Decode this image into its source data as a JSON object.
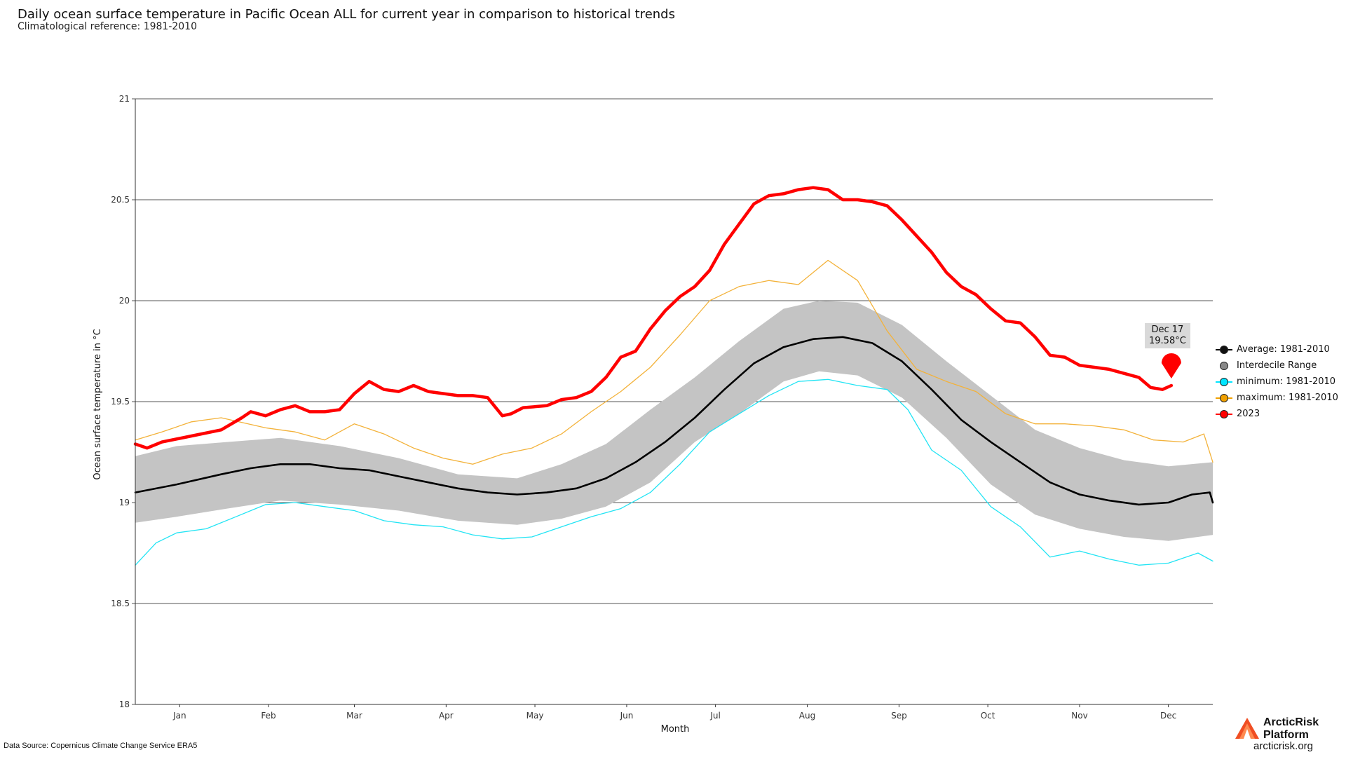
{
  "header": {
    "title": "Daily ocean surface temperature in Pacific Ocean ALL for current year in comparison to historical trends",
    "subtitle": "Climatological reference: 1981-2010"
  },
  "footer": {
    "source": "Data Source: Copernicus Climate Change Service ERA5",
    "brand_line1": "ArcticRisk",
    "brand_line2": "Platform",
    "brand_url": "arcticrisk.org"
  },
  "tooltip": {
    "date": "Dec 17",
    "value": "19.58°C"
  },
  "legend": [
    {
      "label": "Average: 1981-2010",
      "color": "#000000",
      "dot": "#222222"
    },
    {
      "label": "Interdecile Range",
      "color": "#888888",
      "dot": "#888888"
    },
    {
      "label": "minimum: 1981-2010",
      "color": "#00e5ff",
      "dot": "#00e5ff"
    },
    {
      "label": "maximum: 1981-2010",
      "color": "#f0a000",
      "dot": "#f0a000"
    },
    {
      "label": "2023",
      "color": "#ff0000",
      "dot": "#ff0000"
    }
  ],
  "colors": {
    "band": "#c4c4c4",
    "average": "#000000",
    "minimum": "#22e4f4",
    "maximum": "#f3b23a",
    "current": "#ff0000"
  },
  "chart_data": {
    "type": "line",
    "xlabel": "Month",
    "ylabel": "Ocean surface temperature in °C",
    "ylim": [
      18,
      21
    ],
    "xlim": [
      1,
      365
    ],
    "yticks": [
      18,
      18.5,
      19,
      19.5,
      20,
      20.5,
      21
    ],
    "xticks": [
      {
        "label": "Jan",
        "day": 16
      },
      {
        "label": "Feb",
        "day": 46
      },
      {
        "label": "Mar",
        "day": 75
      },
      {
        "label": "Apr",
        "day": 106
      },
      {
        "label": "May",
        "day": 136
      },
      {
        "label": "Jun",
        "day": 167
      },
      {
        "label": "Jul",
        "day": 197
      },
      {
        "label": "Aug",
        "day": 228
      },
      {
        "label": "Sep",
        "day": 259
      },
      {
        "label": "Oct",
        "day": 289
      },
      {
        "label": "Nov",
        "day": 320
      },
      {
        "label": "Dec",
        "day": 350
      }
    ],
    "grid": "horizontal",
    "legend_position": "right",
    "series": [
      {
        "name": "Interdecile Range",
        "x": [
          1,
          15,
          32,
          50,
          70,
          90,
          110,
          130,
          145,
          160,
          175,
          190,
          205,
          220,
          232,
          245,
          260,
          275,
          290,
          305,
          320,
          335,
          350,
          365
        ],
        "upper": [
          19.23,
          19.28,
          19.3,
          19.32,
          19.28,
          19.22,
          19.14,
          19.12,
          19.19,
          19.29,
          19.46,
          19.62,
          19.8,
          19.96,
          20.0,
          19.99,
          19.88,
          19.7,
          19.53,
          19.36,
          19.27,
          19.21,
          19.18,
          19.2
        ],
        "lower": [
          18.9,
          18.93,
          18.97,
          19.01,
          18.99,
          18.96,
          18.91,
          18.89,
          18.92,
          18.98,
          19.1,
          19.3,
          19.44,
          19.6,
          19.65,
          19.63,
          19.52,
          19.32,
          19.09,
          18.94,
          18.87,
          18.83,
          18.81,
          18.84
        ]
      },
      {
        "name": "Average: 1981-2010",
        "x": [
          1,
          15,
          30,
          40,
          50,
          60,
          70,
          80,
          90,
          100,
          110,
          120,
          130,
          140,
          150,
          160,
          170,
          180,
          190,
          200,
          210,
          220,
          230,
          240,
          250,
          260,
          270,
          280,
          290,
          300,
          310,
          320,
          330,
          340,
          350,
          358,
          364,
          365
        ],
        "values": [
          19.05,
          19.09,
          19.14,
          19.17,
          19.19,
          19.19,
          19.17,
          19.16,
          19.13,
          19.1,
          19.07,
          19.05,
          19.04,
          19.05,
          19.07,
          19.12,
          19.2,
          19.3,
          19.42,
          19.56,
          19.69,
          19.77,
          19.81,
          19.82,
          19.79,
          19.7,
          19.56,
          19.41,
          19.3,
          19.2,
          19.1,
          19.04,
          19.01,
          18.99,
          19.0,
          19.04,
          19.05,
          19.0
        ]
      },
      {
        "name": "minimum: 1981-2010",
        "x": [
          1,
          8,
          15,
          25,
          35,
          45,
          55,
          65,
          75,
          85,
          95,
          105,
          115,
          125,
          135,
          145,
          155,
          165,
          175,
          185,
          195,
          205,
          215,
          225,
          235,
          245,
          255,
          262,
          270,
          280,
          290,
          300,
          310,
          320,
          330,
          340,
          350,
          360,
          365
        ],
        "values": [
          18.69,
          18.8,
          18.85,
          18.87,
          18.93,
          18.99,
          19.0,
          18.98,
          18.96,
          18.91,
          18.89,
          18.88,
          18.84,
          18.82,
          18.83,
          18.88,
          18.93,
          18.97,
          19.05,
          19.19,
          19.35,
          19.44,
          19.53,
          19.6,
          19.61,
          19.58,
          19.56,
          19.46,
          19.26,
          19.16,
          18.98,
          18.88,
          18.73,
          18.76,
          18.72,
          18.69,
          18.7,
          18.75,
          18.71
        ]
      },
      {
        "name": "maximum: 1981-2010",
        "x": [
          1,
          10,
          20,
          30,
          45,
          55,
          65,
          75,
          85,
          95,
          105,
          115,
          125,
          135,
          145,
          155,
          165,
          175,
          185,
          195,
          205,
          215,
          225,
          235,
          245,
          255,
          265,
          275,
          285,
          295,
          305,
          315,
          325,
          335,
          345,
          355,
          362,
          365
        ],
        "values": [
          19.31,
          19.35,
          19.4,
          19.42,
          19.37,
          19.35,
          19.31,
          19.39,
          19.34,
          19.27,
          19.22,
          19.19,
          19.24,
          19.27,
          19.34,
          19.45,
          19.55,
          19.67,
          19.83,
          20.0,
          20.07,
          20.1,
          20.08,
          20.2,
          20.1,
          19.85,
          19.66,
          19.6,
          19.55,
          19.44,
          19.39,
          19.39,
          19.38,
          19.36,
          19.31,
          19.3,
          19.34,
          19.2
        ]
      },
      {
        "name": "2023",
        "x": [
          1,
          5,
          10,
          20,
          30,
          37,
          40,
          45,
          50,
          55,
          60,
          65,
          70,
          75,
          80,
          85,
          90,
          95,
          100,
          105,
          110,
          115,
          120,
          125,
          128,
          132,
          140,
          145,
          150,
          155,
          160,
          165,
          170,
          175,
          180,
          185,
          190,
          195,
          200,
          205,
          210,
          215,
          220,
          225,
          230,
          235,
          240,
          245,
          250,
          255,
          260,
          265,
          270,
          275,
          280,
          285,
          290,
          295,
          300,
          305,
          310,
          315,
          320,
          325,
          330,
          335,
          340,
          344,
          348,
          351
        ],
        "values": [
          19.29,
          19.27,
          19.3,
          19.33,
          19.36,
          19.42,
          19.45,
          19.43,
          19.46,
          19.48,
          19.45,
          19.45,
          19.46,
          19.54,
          19.6,
          19.56,
          19.55,
          19.58,
          19.55,
          19.54,
          19.53,
          19.53,
          19.52,
          19.43,
          19.44,
          19.47,
          19.48,
          19.51,
          19.52,
          19.55,
          19.62,
          19.72,
          19.75,
          19.86,
          19.95,
          20.02,
          20.07,
          20.15,
          20.28,
          20.38,
          20.48,
          20.52,
          20.53,
          20.55,
          20.56,
          20.55,
          20.5,
          20.5,
          20.49,
          20.47,
          20.4,
          20.32,
          20.24,
          20.14,
          20.07,
          20.03,
          19.96,
          19.9,
          19.89,
          19.82,
          19.73,
          19.72,
          19.68,
          19.67,
          19.66,
          19.64,
          19.62,
          19.57,
          19.56,
          19.58
        ]
      }
    ]
  }
}
